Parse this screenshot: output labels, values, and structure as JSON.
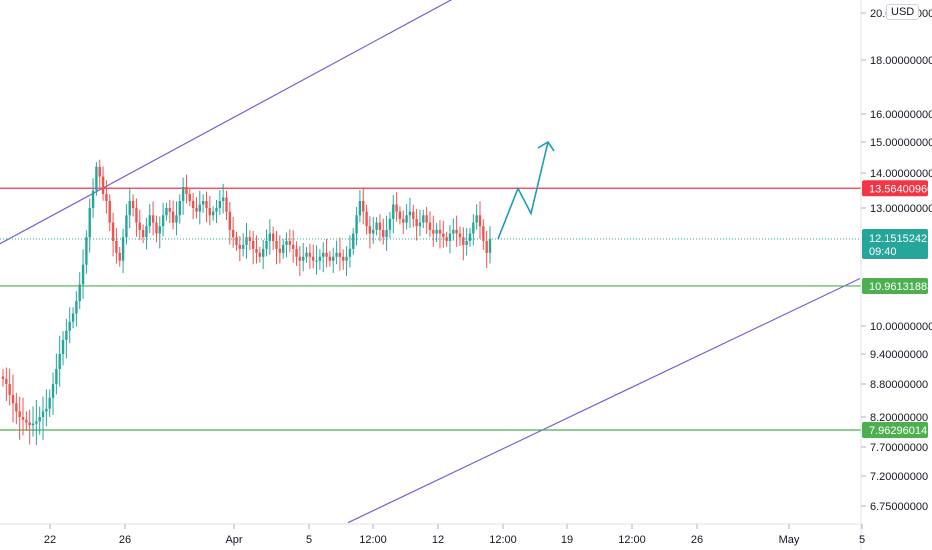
{
  "chart_data": {
    "type": "candlestick",
    "currency": "USD",
    "x_ticks": [
      "22",
      "26",
      "Apr",
      "5",
      "12:00",
      "12",
      "12:00",
      "19",
      "12:00",
      "26",
      "May",
      "5"
    ],
    "y_ticks": [
      "20.00000000",
      "18.00000000",
      "16.00000000",
      "15.00000000",
      "14.00000000",
      "13.00000000",
      "10.00000000",
      "9.40000000",
      "8.80000000",
      "8.20000000",
      "7.70000000",
      "7.20000000",
      "6.75000000"
    ],
    "price_levels": [
      {
        "label": "13.56400960",
        "value": 13.564,
        "color": "#f23645"
      },
      {
        "label": "10.96131883",
        "value": 10.9613,
        "color": "#4caf50"
      },
      {
        "label": "7.96296014",
        "value": 7.963,
        "color": "#4caf50"
      }
    ],
    "last_price": {
      "label": "12.15152421",
      "countdown": "09:40",
      "value": 12.1515,
      "color": "#26a69a"
    },
    "colors": {
      "up": "#26a69a",
      "down": "#ef5350",
      "channel": "#7b5cd6",
      "projection": "#1e9bb8"
    },
    "candles_close": [
      8.9,
      8.8,
      8.6,
      8.45,
      8.3,
      8.2,
      8.15,
      8.1,
      8.05,
      8.08,
      8.12,
      8.2,
      8.3,
      8.35,
      8.55,
      8.8,
      9.1,
      9.4,
      9.7,
      9.9,
      10.1,
      10.3,
      10.6,
      11.0,
      11.5,
      12.2,
      13.0,
      13.5,
      14.2,
      13.9,
      13.4,
      13.2,
      12.6,
      12.1,
      11.8,
      11.6,
      12.2,
      12.8,
      13.2,
      13.0,
      12.6,
      12.4,
      12.2,
      12.5,
      12.8,
      12.6,
      12.3,
      12.5,
      12.8,
      13.0,
      12.9,
      12.6,
      12.8,
      13.2,
      13.6,
      13.4,
      13.2,
      13.0,
      12.9,
      13.1,
      13.2,
      13.0,
      12.8,
      12.9,
      13.0,
      13.2,
      13.3,
      12.9,
      12.4,
      12.2,
      12.0,
      11.9,
      12.0,
      12.2,
      12.1,
      11.9,
      11.8,
      11.7,
      11.9,
      12.1,
      12.3,
      12.1,
      11.9,
      11.8,
      12.0,
      12.1,
      12.0,
      11.9,
      11.7,
      11.6,
      11.7,
      11.8,
      11.7,
      11.6,
      11.6,
      11.7,
      11.8,
      11.7,
      11.6,
      11.7,
      11.8,
      11.7,
      11.6,
      11.7,
      11.9,
      12.3,
      12.8,
      13.2,
      12.9,
      12.5,
      12.3,
      12.4,
      12.6,
      12.4,
      12.2,
      12.4,
      12.7,
      13.1,
      12.9,
      12.7,
      12.6,
      12.8,
      12.9,
      12.7,
      12.5,
      12.6,
      12.8,
      12.6,
      12.4,
      12.3,
      12.4,
      12.3,
      12.2,
      12.1,
      12.3,
      12.4,
      12.3,
      12.2,
      12.0,
      12.1,
      12.3,
      12.6,
      12.8,
      12.5,
      12.1,
      11.8,
      12.15
    ],
    "channel_upper": {
      "x0": 0,
      "y0": 12.03,
      "x1": 466,
      "y1": 20.9
    },
    "channel_lower": {
      "x0": 348,
      "y0": 6.5,
      "x1": 860,
      "y1": 11.15
    },
    "projection_path": [
      {
        "x": 498,
        "y": 12.15
      },
      {
        "x": 518,
        "y": 13.56
      },
      {
        "x": 531,
        "y": 12.85
      },
      {
        "x": 548,
        "y": 15.0
      }
    ]
  }
}
